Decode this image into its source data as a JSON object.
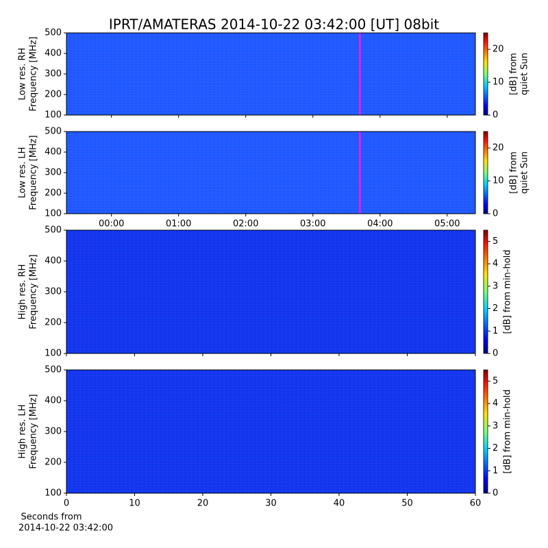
{
  "title": "IPRT/AMATERAS 2014-10-22 03:42:00 [UT]   08bit",
  "chart_data": [
    {
      "type": "heatmap",
      "ylabel": [
        "Low res. RH",
        "Frequency [MHz]"
      ],
      "xlim": [
        -0.67,
        5.42
      ],
      "xticks": [
        {
          "value": 0,
          "label": "00:00"
        },
        {
          "value": 1,
          "label": "01:00"
        },
        {
          "value": 2,
          "label": "02:00"
        },
        {
          "value": 3,
          "label": "03:00"
        },
        {
          "value": 4,
          "label": "04:00"
        },
        {
          "value": 5,
          "label": "05:00"
        }
      ],
      "show_xticklabels": false,
      "ylim": [
        100,
        500
      ],
      "yticks": [
        100,
        200,
        300,
        400,
        500
      ],
      "cursor_x": 3.7,
      "cursor_color": "#e020e8",
      "fill": "#1f55ff",
      "colorbar": {
        "label": [
          "[dB] from",
          "quiet Sun"
        ],
        "lim": [
          0,
          25
        ],
        "ticks": [
          0,
          10,
          20
        ]
      }
    },
    {
      "type": "heatmap",
      "ylabel": [
        "Low res. LH",
        "Frequency [MHz]"
      ],
      "xlim": [
        -0.67,
        5.42
      ],
      "xticks": [
        {
          "value": 0,
          "label": "00:00"
        },
        {
          "value": 1,
          "label": "01:00"
        },
        {
          "value": 2,
          "label": "02:00"
        },
        {
          "value": 3,
          "label": "03:00"
        },
        {
          "value": 4,
          "label": "04:00"
        },
        {
          "value": 5,
          "label": "05:00"
        }
      ],
      "show_xticklabels": true,
      "ylim": [
        100,
        500
      ],
      "yticks": [
        100,
        200,
        300,
        400,
        500
      ],
      "cursor_x": 3.7,
      "cursor_color": "#e020e8",
      "fill": "#1f55ff",
      "colorbar": {
        "label": [
          "[dB] from",
          "quiet Sun"
        ],
        "lim": [
          0,
          25
        ],
        "ticks": [
          0,
          10,
          20
        ]
      }
    },
    {
      "type": "heatmap",
      "ylabel": [
        "High res. RH",
        "Frequency [MHz]"
      ],
      "xlim": [
        0,
        60
      ],
      "xticks": [
        0,
        10,
        20,
        30,
        40,
        50,
        60
      ],
      "show_xticklabels": false,
      "ylim": [
        100,
        500
      ],
      "yticks": [
        100,
        200,
        300,
        400,
        500
      ],
      "fill": "#1232ee",
      "colorbar": {
        "label": [
          "[dB] from min-hold"
        ],
        "lim": [
          0,
          5.5
        ],
        "ticks": [
          0,
          1,
          2,
          3,
          4,
          5
        ]
      }
    },
    {
      "type": "heatmap",
      "ylabel": [
        "High res. LH",
        "Frequency [MHz]"
      ],
      "xlim": [
        0,
        60
      ],
      "xticks": [
        0,
        10,
        20,
        30,
        40,
        50,
        60
      ],
      "show_xticklabels": true,
      "xlabel": [
        "Seconds from",
        "2014-10-22 03:42:00"
      ],
      "ylim": [
        100,
        500
      ],
      "yticks": [
        100,
        200,
        300,
        400,
        500
      ],
      "fill": "#1232ee",
      "colorbar": {
        "label": [
          "[dB] from min-hold"
        ],
        "lim": [
          0,
          5.5
        ],
        "ticks": [
          0,
          1,
          2,
          3,
          4,
          5
        ]
      }
    }
  ]
}
